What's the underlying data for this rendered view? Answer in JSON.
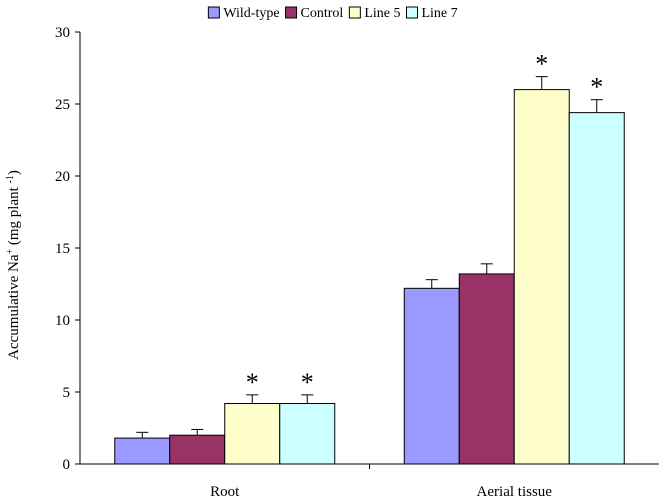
{
  "chart_data": {
    "type": "bar",
    "categories": [
      "Root",
      "Aerial tissue"
    ],
    "series": [
      {
        "name": "Wild-type",
        "color": "#9999ff",
        "values": [
          1.8,
          12.2
        ],
        "errors": [
          0.4,
          0.6
        ],
        "significant": [
          false,
          false
        ]
      },
      {
        "name": "Control",
        "color": "#993366",
        "values": [
          2.0,
          13.2
        ],
        "errors": [
          0.4,
          0.7
        ],
        "significant": [
          false,
          false
        ]
      },
      {
        "name": "Line 5",
        "color": "#ffffcc",
        "values": [
          4.2,
          26.0
        ],
        "errors": [
          0.6,
          0.9
        ],
        "significant": [
          true,
          true
        ]
      },
      {
        "name": "Line 7",
        "color": "#ccffff",
        "values": [
          4.2,
          24.4
        ],
        "errors": [
          0.6,
          0.9
        ],
        "significant": [
          true,
          true
        ]
      }
    ],
    "ylabel": {
      "main": "Accumulative Na",
      "sup1": "+",
      "mid": " (mg plant ",
      "sup2": "-1",
      "end": ")"
    },
    "ylim": [
      0,
      30
    ],
    "yticks": [
      0,
      5,
      10,
      15,
      20,
      25,
      30
    ],
    "significance_marker": "*",
    "grid": false,
    "legend_position": "top"
  }
}
